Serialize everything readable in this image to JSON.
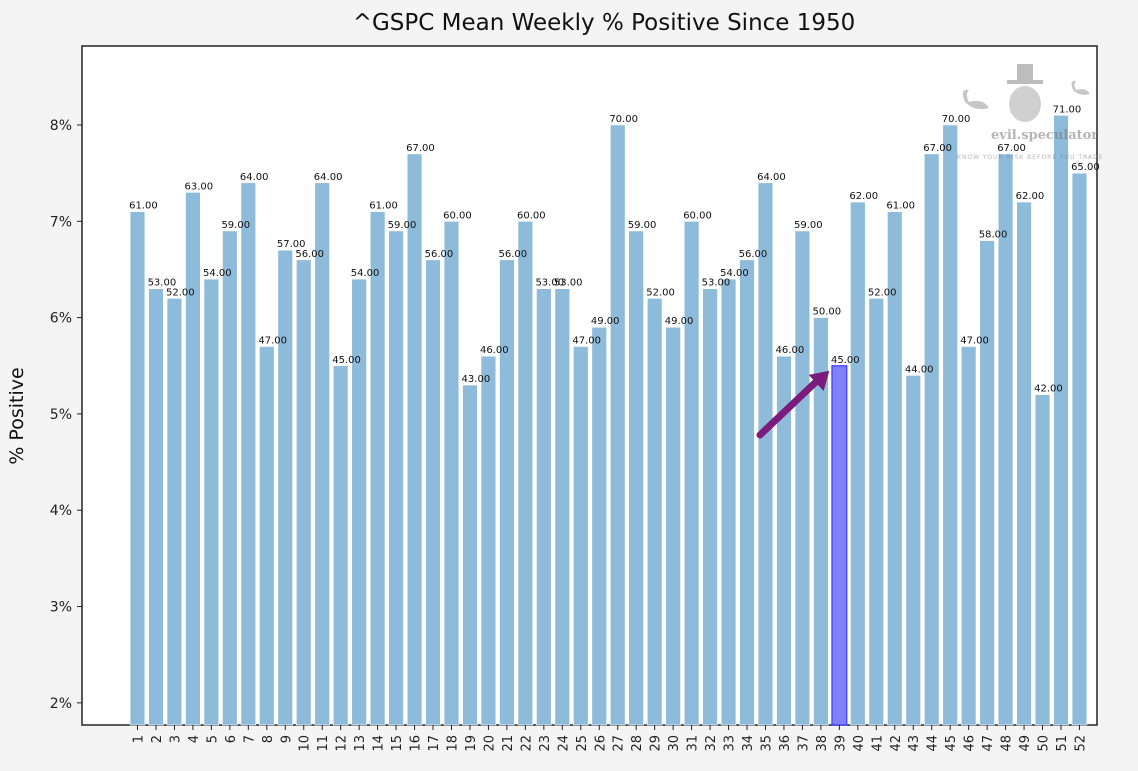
{
  "chart_data": {
    "type": "bar",
    "title": "^GSPC Mean Weekly % Positive Since 1950",
    "xlabel": "",
    "ylabel": "% Positive",
    "ylim": [
      1.77,
      8.82
    ],
    "yticks": [
      2,
      3,
      4,
      5,
      6,
      7,
      8
    ],
    "ytick_labels": [
      "2%",
      "3%",
      "4%",
      "5%",
      "6%",
      "7%",
      "8%"
    ],
    "grid": false,
    "categories": [
      "1",
      "2",
      "3",
      "4",
      "5",
      "6",
      "7",
      "8",
      "9",
      "10",
      "11",
      "12",
      "13",
      "14",
      "15",
      "16",
      "17",
      "18",
      "19",
      "20",
      "21",
      "22",
      "23",
      "24",
      "25",
      "26",
      "27",
      "28",
      "29",
      "30",
      "31",
      "32",
      "33",
      "34",
      "35",
      "36",
      "37",
      "38",
      "39",
      "40",
      "41",
      "42",
      "43",
      "44",
      "45",
      "46",
      "47",
      "48",
      "49",
      "50",
      "51",
      "52"
    ],
    "values": [
      7.1,
      6.3,
      6.2,
      7.3,
      6.4,
      6.9,
      7.4,
      5.7,
      6.7,
      6.6,
      7.4,
      5.5,
      6.4,
      7.1,
      6.9,
      7.7,
      6.6,
      7.0,
      5.3,
      5.6,
      6.6,
      7.0,
      6.3,
      6.3,
      5.7,
      5.9,
      8.0,
      6.9,
      6.2,
      5.9,
      7.0,
      6.3,
      6.4,
      6.6,
      7.4,
      5.6,
      6.9,
      6.0,
      5.5,
      7.2,
      6.2,
      7.1,
      5.4,
      7.7,
      8.0,
      5.7,
      6.8,
      7.7,
      7.2,
      5.2,
      8.1,
      7.5
    ],
    "data_labels": [
      "61.00",
      "53.00",
      "52.00",
      "63.00",
      "54.00",
      "59.00",
      "64.00",
      "47.00",
      "57.00",
      "56.00",
      "64.00",
      "45.00",
      "54.00",
      "61.00",
      "59.00",
      "67.00",
      "56.00",
      "60.00",
      "43.00",
      "46.00",
      "56.00",
      "60.00",
      "53.00",
      "53.00",
      "47.00",
      "49.00",
      "70.00",
      "59.00",
      "52.00",
      "49.00",
      "60.00",
      "53.00",
      "54.00",
      "56.00",
      "64.00",
      "46.00",
      "59.00",
      "50.00",
      "45.00",
      "62.00",
      "52.00",
      "61.00",
      "44.00",
      "67.00",
      "70.00",
      "47.00",
      "58.00",
      "67.00",
      "62.00",
      "42.00",
      "71.00",
      "65.00"
    ],
    "highlight_index": 38,
    "highlight_category": "39",
    "annotation": "arrow pointing to week 39",
    "colors": {
      "bar": "#8fbbdb",
      "highlight": "#7f7fff",
      "highlight_edge": "#3b3bff",
      "highlight_tick": "#3333ff",
      "arrow": "#7b1c7b"
    }
  },
  "watermark": {
    "name": "evil.speculator",
    "tagline": "KNOW YOUR RISK BEFORE YOU TRADE"
  }
}
